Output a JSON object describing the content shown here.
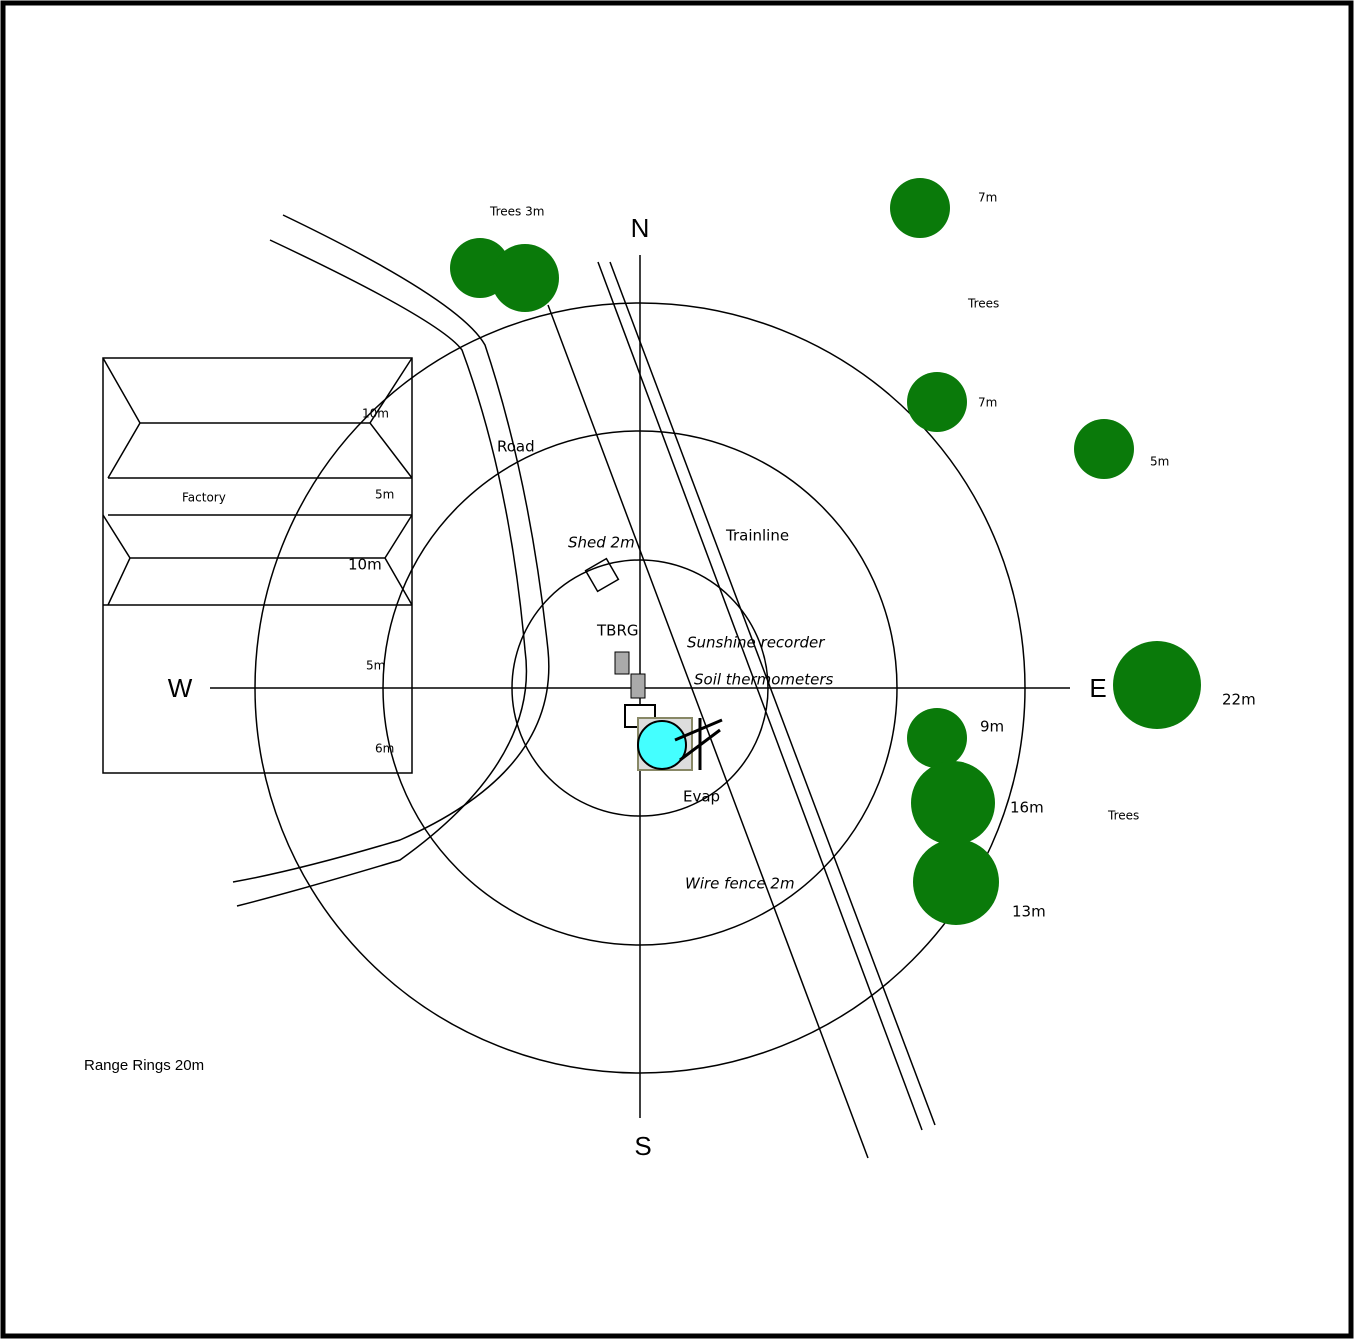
{
  "diagram": {
    "compass": {
      "north": "N",
      "south": "S",
      "east": "E",
      "west": "W"
    },
    "labels": {
      "trees_3m": "Trees 3m",
      "tree_top_height": "7m",
      "trees_ne": "Trees",
      "tree_mid_height": "7m",
      "tree_right_height": "5m",
      "factory_10m_top": "10m",
      "road": "Road",
      "factory": "Factory",
      "factory_5m_top": "5m",
      "factory_10m_mid": "10m",
      "shed": "Shed 2m",
      "trainline": "Trainline",
      "tbrg": "TBRG",
      "sunshine": "Sunshine recorder",
      "factory_5m_low": "5m",
      "soil": "Soil thermometers",
      "tree_east_height": "22m",
      "tree_9m": "9m",
      "factory_6m": "6m",
      "evap": "Evap",
      "tree_16m": "16m",
      "trees_se": "Trees",
      "fence": "Wire fence 2m",
      "tree_13m": "13m",
      "range_rings": "Range Rings 20m"
    }
  }
}
